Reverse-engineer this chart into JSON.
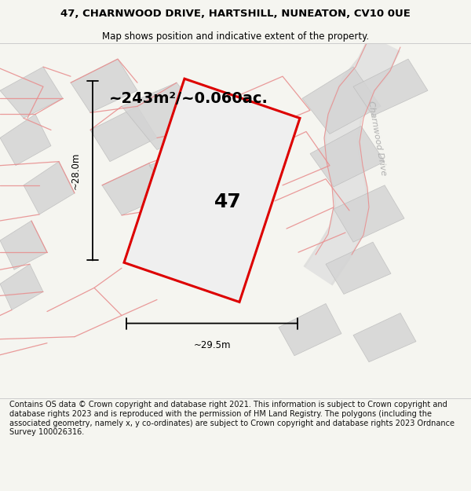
{
  "title": "47, CHARNWOOD DRIVE, HARTSHILL, NUNEATON, CV10 0UE",
  "subtitle": "Map shows position and indicative extent of the property.",
  "footer": "Contains OS data © Crown copyright and database right 2021. This information is subject to Crown copyright and database rights 2023 and is reproduced with the permission of HM Land Registry. The polygons (including the associated geometry, namely x, y co-ordinates) are subject to Crown copyright and database rights 2023 Ordnance Survey 100026316.",
  "area_label": "~243m²/~0.060ac.",
  "width_label": "~29.5m",
  "height_label": "~28.0m",
  "plot_number": "47",
  "bg_color": "#f5f5f0",
  "map_bg": "#ffffff",
  "plot_fill": "#efefef",
  "plot_outline_red": "#dd0000",
  "road_label_color": "#b0b0b0",
  "gray_poly_fill": "#d4d4d4",
  "gray_poly_edge": "#bbbbbb",
  "pink_line_color": "#e89090",
  "title_fontsize": 9.5,
  "subtitle_fontsize": 8.5,
  "footer_fontsize": 7.0,
  "area_fontsize": 14,
  "dim_fontsize": 8.5,
  "plot_num_fontsize": 18
}
